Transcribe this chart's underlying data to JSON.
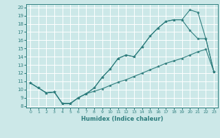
{
  "xlabel": "Humidex (Indice chaleur)",
  "bg_color": "#cce8e8",
  "grid_color": "#ffffff",
  "line_color": "#2e7d7d",
  "xlim": [
    -0.5,
    23.5
  ],
  "ylim": [
    7.8,
    20.4
  ],
  "xticks": [
    0,
    1,
    2,
    3,
    4,
    5,
    6,
    7,
    8,
    9,
    10,
    11,
    12,
    13,
    14,
    15,
    16,
    17,
    18,
    19,
    20,
    21,
    22,
    23
  ],
  "yticks": [
    8,
    9,
    10,
    11,
    12,
    13,
    14,
    15,
    16,
    17,
    18,
    19,
    20
  ],
  "hours": [
    0,
    1,
    2,
    3,
    4,
    5,
    6,
    7,
    8,
    9,
    10,
    11,
    12,
    13,
    14,
    15,
    16,
    17,
    18,
    19,
    20,
    21,
    22,
    23
  ],
  "curve_upper": [
    10.8,
    10.2,
    9.6,
    9.7,
    8.3,
    8.3,
    9.0,
    9.5,
    10.2,
    11.5,
    12.5,
    13.8,
    14.2,
    14.0,
    15.2,
    16.5,
    17.5,
    18.3,
    18.5,
    18.5,
    19.7,
    19.4,
    16.2,
    12.2
  ],
  "curve_mid": [
    10.8,
    10.2,
    9.6,
    9.7,
    8.3,
    8.3,
    9.0,
    9.5,
    10.2,
    11.5,
    12.5,
    13.8,
    14.2,
    14.0,
    15.2,
    16.5,
    17.5,
    18.3,
    18.5,
    18.5,
    17.2,
    16.2,
    16.2,
    12.2
  ],
  "curve_lower": [
    10.8,
    10.2,
    9.6,
    9.7,
    8.3,
    8.3,
    9.0,
    9.5,
    9.8,
    10.1,
    10.5,
    10.9,
    11.2,
    11.6,
    12.0,
    12.4,
    12.8,
    13.2,
    13.5,
    13.8,
    14.2,
    14.6,
    14.9,
    12.2
  ]
}
